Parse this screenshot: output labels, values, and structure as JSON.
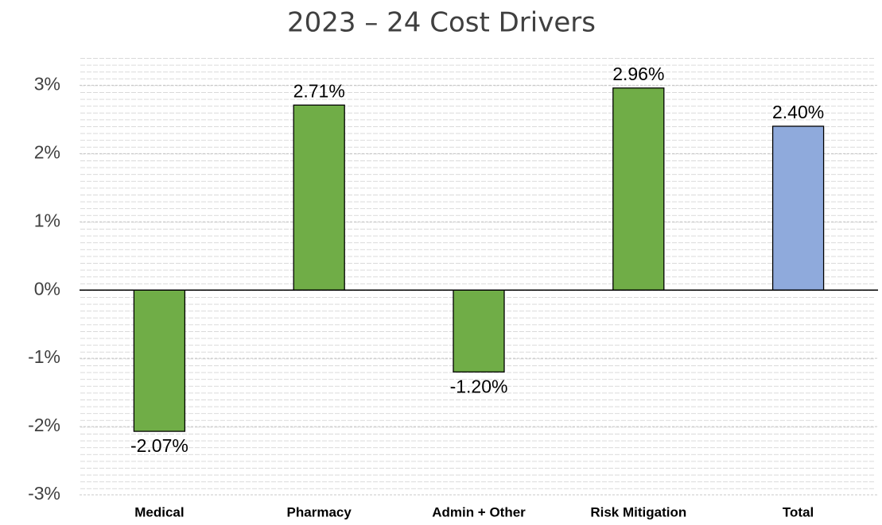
{
  "chart_data": {
    "type": "bar",
    "title": "2023 – 24 Cost Drivers",
    "categories": [
      "Medical",
      "Pharmacy",
      "Admin + Other",
      "Risk Mitigation",
      "Total"
    ],
    "values": [
      -2.07,
      2.71,
      -1.2,
      2.96,
      2.4
    ],
    "value_labels": [
      "-2.07%",
      "2.71%",
      "-1.20%",
      "2.96%",
      "2.40%"
    ],
    "colors": [
      "#70ad47",
      "#70ad47",
      "#70ad47",
      "#70ad47",
      "#8faadc"
    ],
    "ylim": [
      -3,
      3.4
    ],
    "yticks": [
      {
        "value": -3,
        "label": "-3%"
      },
      {
        "value": -2,
        "label": "-2%"
      },
      {
        "value": -1,
        "label": "-1%"
      },
      {
        "value": 0,
        "label": "0%"
      },
      {
        "value": 1,
        "label": "1%"
      },
      {
        "value": 2,
        "label": "2%"
      },
      {
        "value": 3,
        "label": "3%"
      }
    ],
    "grid": true
  }
}
